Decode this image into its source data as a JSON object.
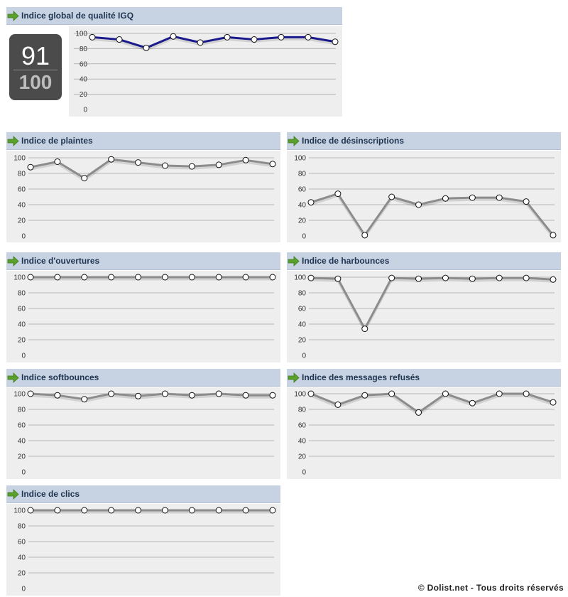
{
  "score": {
    "value": "91",
    "max": "100"
  },
  "footer": "© Dolist.net - Tous droits réservés",
  "colors": {
    "global_line": "#1a1a8c",
    "line": "#8c8c8c",
    "header_bg": "#c7d3e2",
    "chart_bg": "#eeeeee",
    "arrow": "#5aa02c"
  },
  "icons": {
    "header_icon": "green-arrow-icon"
  },
  "chart_data": [
    {
      "id": "global",
      "title": "Indice global de qualité IGQ",
      "type": "line",
      "ylim": [
        0,
        100
      ],
      "yticks": [
        0,
        20,
        40,
        60,
        80,
        100
      ],
      "grid": true,
      "values": [
        95,
        92,
        81,
        96,
        88,
        95,
        92,
        95,
        95,
        89
      ]
    },
    {
      "id": "plaintes",
      "title": "Indice de plaintes",
      "type": "line",
      "ylim": [
        0,
        100
      ],
      "yticks": [
        0,
        20,
        40,
        60,
        80,
        100
      ],
      "grid": true,
      "values": [
        88,
        95,
        74,
        98,
        94,
        90,
        89,
        91,
        97,
        92
      ]
    },
    {
      "id": "desinscriptions",
      "title": "Indice de désinscriptions",
      "type": "line",
      "ylim": [
        0,
        100
      ],
      "yticks": [
        0,
        20,
        40,
        60,
        80,
        100
      ],
      "grid": true,
      "values": [
        43,
        54,
        1,
        50,
        40,
        48,
        49,
        49,
        44,
        1
      ]
    },
    {
      "id": "ouvertures",
      "title": "Indice d'ouvertures",
      "type": "line",
      "ylim": [
        0,
        100
      ],
      "yticks": [
        0,
        20,
        40,
        60,
        80,
        100
      ],
      "grid": true,
      "values": [
        100,
        100,
        100,
        100,
        100,
        100,
        100,
        100,
        100,
        100
      ]
    },
    {
      "id": "harbounces",
      "title": "Indice de harbounces",
      "type": "line",
      "ylim": [
        0,
        100
      ],
      "yticks": [
        0,
        20,
        40,
        60,
        80,
        100
      ],
      "grid": true,
      "values": [
        99,
        98,
        34,
        99,
        98,
        99,
        98,
        99,
        99,
        97
      ]
    },
    {
      "id": "softbounces",
      "title": "Indice softbounces",
      "type": "line",
      "ylim": [
        0,
        100
      ],
      "yticks": [
        0,
        20,
        40,
        60,
        80,
        100
      ],
      "grid": true,
      "values": [
        100,
        98,
        93,
        100,
        97,
        100,
        98,
        100,
        98,
        98
      ]
    },
    {
      "id": "refuses",
      "title": "Indice des messages refusés",
      "type": "line",
      "ylim": [
        0,
        100
      ],
      "yticks": [
        0,
        20,
        40,
        60,
        80,
        100
      ],
      "grid": true,
      "values": [
        100,
        86,
        98,
        100,
        76,
        100,
        88,
        100,
        100,
        89
      ]
    },
    {
      "id": "clics",
      "title": "Indice de clics",
      "type": "line",
      "ylim": [
        0,
        100
      ],
      "yticks": [
        0,
        20,
        40,
        60,
        80,
        100
      ],
      "grid": true,
      "values": [
        100,
        100,
        100,
        100,
        100,
        100,
        100,
        100,
        100,
        100
      ]
    }
  ]
}
